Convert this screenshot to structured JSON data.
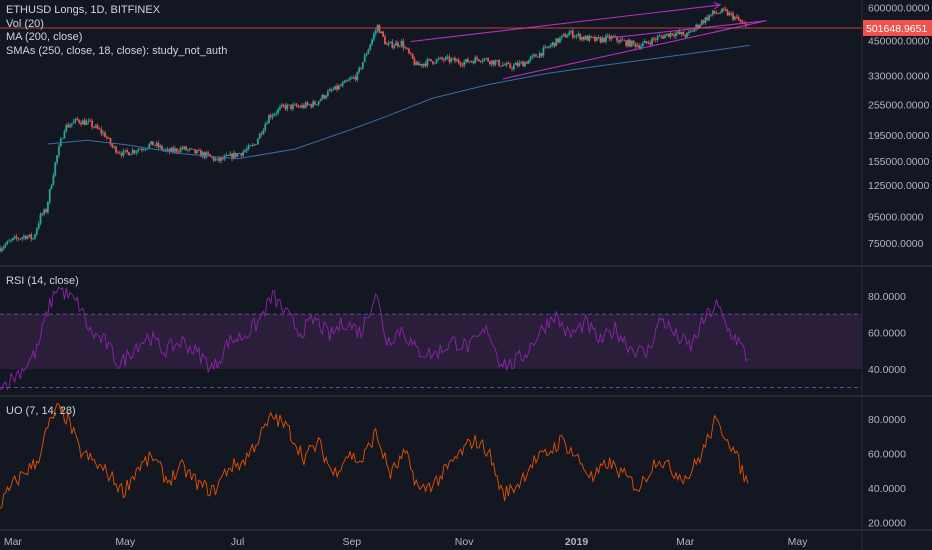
{
  "header": {
    "title": "ETHUSD Longs, 1D, BITFINEX",
    "indicators": [
      "Vol (20)",
      "MA (200, close)",
      "SMAs (250, close, 18, close): study_not_auth"
    ]
  },
  "price_badge": "501648.9651",
  "colors": {
    "background": "#131722",
    "up": "#26a69a",
    "down": "#ef5350",
    "ma200": "#3a6ea5",
    "channel": "#b32fc4",
    "rsi_line": "#8e24aa",
    "rsi_band": "#2a1e3b",
    "uo_line": "#e65100",
    "price_line": "#ef5350",
    "separator": "#2a2e39",
    "text": "#b2b5be"
  },
  "chart_data": [
    {
      "type": "candlestick",
      "title": "ETHUSD Longs, 1D, BITFINEX",
      "y_scale": "log",
      "ylim": [
        64000,
        620000
      ],
      "y_ticks": [
        "600000.0000",
        "450000.0000",
        "330000.0000",
        "255000.0000",
        "195000.0000",
        "155000.0000",
        "125000.0000",
        "95000.0000",
        "75000.0000"
      ],
      "x_ticks": [
        "Mar",
        "May",
        "Jul",
        "Sep",
        "Nov",
        "2019",
        "Mar",
        "May"
      ],
      "close_path": [
        [
          "2018-02-22",
          72000
        ],
        [
          "2018-03-01",
          77000
        ],
        [
          "2018-03-08",
          80000
        ],
        [
          "2018-03-12",
          78000
        ],
        [
          "2018-03-16",
          95000
        ],
        [
          "2018-03-19",
          100000
        ],
        [
          "2018-03-24",
          152000
        ],
        [
          "2018-03-29",
          208000
        ],
        [
          "2018-04-05",
          222000
        ],
        [
          "2018-04-12",
          215000
        ],
        [
          "2018-04-20",
          195000
        ],
        [
          "2018-04-24",
          175000
        ],
        [
          "2018-04-30",
          165000
        ],
        [
          "2018-05-08",
          172000
        ],
        [
          "2018-05-16",
          180000
        ],
        [
          "2018-05-24",
          168000
        ],
        [
          "2018-06-01",
          173000
        ],
        [
          "2018-06-08",
          167000
        ],
        [
          "2018-06-15",
          162000
        ],
        [
          "2018-06-20",
          155000
        ],
        [
          "2018-06-26",
          160000
        ],
        [
          "2018-07-04",
          168000
        ],
        [
          "2018-07-10",
          178000
        ],
        [
          "2018-07-18",
          230000
        ],
        [
          "2018-07-26",
          250000
        ],
        [
          "2018-08-04",
          250000
        ],
        [
          "2018-08-12",
          257000
        ],
        [
          "2018-08-18",
          280000
        ],
        [
          "2018-08-26",
          300000
        ],
        [
          "2018-09-04",
          330000
        ],
        [
          "2018-09-10",
          420000
        ],
        [
          "2018-09-15",
          510000
        ],
        [
          "2018-09-20",
          430000
        ],
        [
          "2018-09-28",
          440000
        ],
        [
          "2018-10-06",
          360000
        ],
        [
          "2018-10-14",
          375000
        ],
        [
          "2018-10-22",
          380000
        ],
        [
          "2018-11-01",
          370000
        ],
        [
          "2018-11-10",
          385000
        ],
        [
          "2018-11-18",
          370000
        ],
        [
          "2018-11-26",
          355000
        ],
        [
          "2018-12-04",
          370000
        ],
        [
          "2018-12-12",
          400000
        ],
        [
          "2018-12-20",
          440000
        ],
        [
          "2018-12-28",
          480000
        ],
        [
          "2019-01-05",
          460000
        ],
        [
          "2019-01-12",
          450000
        ],
        [
          "2019-01-20",
          460000
        ],
        [
          "2019-01-28",
          440000
        ],
        [
          "2019-02-05",
          430000
        ],
        [
          "2019-02-14",
          460000
        ],
        [
          "2019-02-22",
          480000
        ],
        [
          "2019-03-02",
          470000
        ],
        [
          "2019-03-10",
          530000
        ],
        [
          "2019-03-16",
          570000
        ],
        [
          "2019-03-22",
          580000
        ],
        [
          "2019-03-28",
          550000
        ],
        [
          "2019-04-03",
          505000
        ]
      ],
      "series": [
        {
          "name": "MA (200, close)",
          "points": [
            [
              "2018-03-20",
              180000
            ],
            [
              "2018-04-10",
              186000
            ],
            [
              "2018-05-01",
              179000
            ],
            [
              "2018-06-01",
              165000
            ],
            [
              "2018-07-01",
              158000
            ],
            [
              "2018-08-01",
              172000
            ],
            [
              "2018-09-01",
              205000
            ],
            [
              "2018-09-20",
              230000
            ],
            [
              "2018-10-15",
              270000
            ],
            [
              "2018-11-15",
              305000
            ],
            [
              "2018-12-15",
              335000
            ],
            [
              "2019-01-15",
              360000
            ],
            [
              "2019-02-15",
              385000
            ],
            [
              "2019-03-15",
              410000
            ],
            [
              "2019-04-05",
              430000
            ]
          ]
        }
      ],
      "drawings": [
        {
          "points": [
            [
              "2018-10-03",
              445000
            ],
            [
              "2019-03-20",
              615000
            ]
          ],
          "arrow": true
        },
        {
          "points": [
            [
              "2018-11-22",
              320000
            ],
            [
              "2019-04-14",
              535000
            ]
          ],
          "arrow": false
        },
        {
          "points": [
            [
              "2019-01-20",
              460000
            ],
            [
              "2019-04-14",
              535000
            ]
          ],
          "arrow": false
        }
      ],
      "last_price": 501648.9651
    },
    {
      "type": "line",
      "title": "RSI (14, close)",
      "ylim": [
        28,
        93
      ],
      "y_ticks": [
        "80.0000",
        "60.0000",
        "40.0000"
      ],
      "bands": [
        30,
        70
      ],
      "band_fill": [
        40,
        70
      ],
      "points": [
        [
          "2018-02-22",
          30
        ],
        [
          "2018-03-01",
          35
        ],
        [
          "2018-03-08",
          42
        ],
        [
          "2018-03-14",
          50
        ],
        [
          "2018-03-20",
          72
        ],
        [
          "2018-03-25",
          85
        ],
        [
          "2018-03-31",
          80
        ],
        [
          "2018-04-06",
          75
        ],
        [
          "2018-04-12",
          60
        ],
        [
          "2018-04-20",
          55
        ],
        [
          "2018-04-28",
          42
        ],
        [
          "2018-05-06",
          52
        ],
        [
          "2018-05-14",
          58
        ],
        [
          "2018-05-22",
          50
        ],
        [
          "2018-06-01",
          55
        ],
        [
          "2018-06-10",
          48
        ],
        [
          "2018-06-18",
          40
        ],
        [
          "2018-06-26",
          55
        ],
        [
          "2018-07-04",
          58
        ],
        [
          "2018-07-12",
          65
        ],
        [
          "2018-07-20",
          80
        ],
        [
          "2018-07-26",
          72
        ],
        [
          "2018-08-04",
          60
        ],
        [
          "2018-08-12",
          67
        ],
        [
          "2018-08-20",
          58
        ],
        [
          "2018-08-28",
          66
        ],
        [
          "2018-09-06",
          60
        ],
        [
          "2018-09-14",
          82
        ],
        [
          "2018-09-20",
          55
        ],
        [
          "2018-09-28",
          62
        ],
        [
          "2018-10-06",
          50
        ],
        [
          "2018-10-16",
          48
        ],
        [
          "2018-10-26",
          55
        ],
        [
          "2018-11-04",
          52
        ],
        [
          "2018-11-14",
          62
        ],
        [
          "2018-11-20",
          45
        ],
        [
          "2018-11-26",
          42
        ],
        [
          "2018-12-04",
          48
        ],
        [
          "2018-12-12",
          60
        ],
        [
          "2018-12-20",
          70
        ],
        [
          "2018-12-28",
          58
        ],
        [
          "2019-01-06",
          65
        ],
        [
          "2019-01-14",
          55
        ],
        [
          "2019-01-22",
          62
        ],
        [
          "2019-01-30",
          52
        ],
        [
          "2019-02-08",
          48
        ],
        [
          "2019-02-16",
          68
        ],
        [
          "2019-02-24",
          58
        ],
        [
          "2019-03-04",
          52
        ],
        [
          "2019-03-12",
          68
        ],
        [
          "2019-03-18",
          75
        ],
        [
          "2019-03-24",
          62
        ],
        [
          "2019-03-30",
          55
        ],
        [
          "2019-04-04",
          45
        ]
      ]
    },
    {
      "type": "line",
      "title": "UO (7, 14, 28)",
      "ylim": [
        18,
        90
      ],
      "y_ticks": [
        "80.0000",
        "60.0000",
        "40.0000",
        "20.0000"
      ],
      "points": [
        [
          "2018-02-22",
          30
        ],
        [
          "2018-03-01",
          42
        ],
        [
          "2018-03-08",
          50
        ],
        [
          "2018-03-14",
          55
        ],
        [
          "2018-03-20",
          75
        ],
        [
          "2018-03-25",
          86
        ],
        [
          "2018-03-31",
          80
        ],
        [
          "2018-04-06",
          62
        ],
        [
          "2018-04-14",
          55
        ],
        [
          "2018-04-22",
          48
        ],
        [
          "2018-04-30",
          38
        ],
        [
          "2018-05-08",
          52
        ],
        [
          "2018-05-16",
          58
        ],
        [
          "2018-05-24",
          44
        ],
        [
          "2018-06-01",
          52
        ],
        [
          "2018-06-10",
          42
        ],
        [
          "2018-06-18",
          38
        ],
        [
          "2018-06-26",
          52
        ],
        [
          "2018-07-04",
          55
        ],
        [
          "2018-07-12",
          68
        ],
        [
          "2018-07-20",
          82
        ],
        [
          "2018-07-28",
          75
        ],
        [
          "2018-08-06",
          58
        ],
        [
          "2018-08-14",
          66
        ],
        [
          "2018-08-22",
          48
        ],
        [
          "2018-08-30",
          60
        ],
        [
          "2018-09-06",
          55
        ],
        [
          "2018-09-14",
          72
        ],
        [
          "2018-09-22",
          48
        ],
        [
          "2018-09-30",
          60
        ],
        [
          "2018-10-08",
          38
        ],
        [
          "2018-10-18",
          45
        ],
        [
          "2018-10-28",
          58
        ],
        [
          "2018-11-06",
          68
        ],
        [
          "2018-11-14",
          62
        ],
        [
          "2018-11-22",
          36
        ],
        [
          "2018-11-30",
          42
        ],
        [
          "2018-12-08",
          55
        ],
        [
          "2018-12-16",
          60
        ],
        [
          "2018-12-24",
          68
        ],
        [
          "2019-01-01",
          58
        ],
        [
          "2019-01-10",
          45
        ],
        [
          "2019-01-18",
          55
        ],
        [
          "2019-01-26",
          48
        ],
        [
          "2019-02-04",
          40
        ],
        [
          "2019-02-14",
          58
        ],
        [
          "2019-02-22",
          50
        ],
        [
          "2019-03-02",
          46
        ],
        [
          "2019-03-10",
          60
        ],
        [
          "2019-03-17",
          78
        ],
        [
          "2019-03-24",
          70
        ],
        [
          "2019-03-30",
          55
        ],
        [
          "2019-04-04",
          42
        ]
      ]
    }
  ],
  "panes": {
    "rsi_label": "RSI (14, close)",
    "uo_label": "UO (7, 14, 28)"
  }
}
